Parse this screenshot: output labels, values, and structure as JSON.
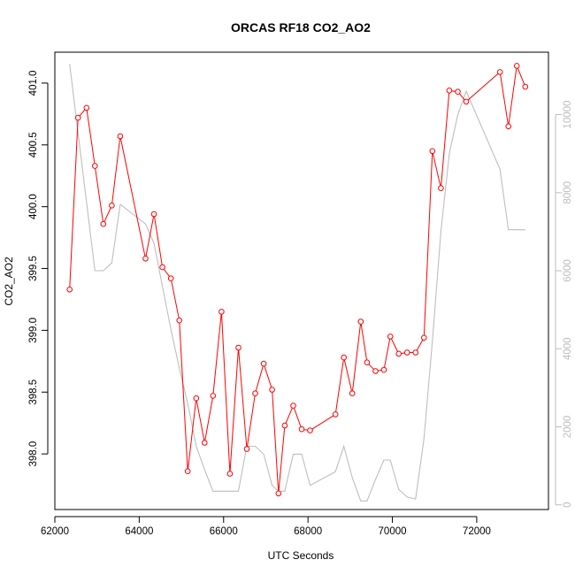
{
  "chart_data": {
    "type": "line",
    "title": "ORCAS RF18 CO2_AO2",
    "xlabel": "UTC Seconds",
    "ylabel": "CO2_AO2",
    "xlim": [
      62000,
      73700
    ],
    "ylim": [
      397.55,
      401.25
    ],
    "y2lim": [
      -120,
      11600
    ],
    "x_ticks": [
      62000,
      64000,
      66000,
      68000,
      70000,
      72000
    ],
    "y_ticks": [
      398.0,
      398.5,
      399.0,
      399.5,
      400.0,
      400.5,
      401.0
    ],
    "y_tick_labels": [
      "398.0",
      "398.5",
      "399.0",
      "399.5",
      "400.0",
      "400.5",
      "401.0"
    ],
    "y2_ticks": [
      0,
      2000,
      4000,
      6000,
      8000,
      10000
    ],
    "grid": false,
    "colors": {
      "primary": "#ff0000",
      "secondary": "#bebebe",
      "axis": "#000000",
      "secondary_axis": "#bdbdbd"
    },
    "series": [
      {
        "axis": "left",
        "style": "line-with-circles",
        "color": "#ff0000",
        "x": [
          62350,
          62550,
          62750,
          62950,
          63150,
          63350,
          63550,
          64150,
          64350,
          64550,
          64750,
          64950,
          65150,
          65350,
          65550,
          65750,
          65950,
          66150,
          66350,
          66550,
          66750,
          66950,
          67150,
          67300,
          67450,
          67650,
          67850,
          68050,
          68650,
          68850,
          69050,
          69250,
          69400,
          69600,
          69800,
          69950,
          70150,
          70350,
          70550,
          70750,
          70950,
          71150,
          71350,
          71550,
          71750,
          72550,
          72750,
          72950,
          73150
        ],
        "y": [
          399.33,
          400.72,
          400.8,
          400.33,
          399.86,
          400.01,
          400.57,
          399.58,
          399.94,
          399.51,
          399.42,
          399.08,
          397.86,
          398.45,
          398.09,
          398.47,
          399.15,
          397.84,
          398.86,
          398.04,
          398.49,
          398.73,
          398.52,
          397.68,
          398.23,
          398.39,
          398.2,
          398.19,
          398.32,
          398.78,
          398.49,
          399.07,
          398.74,
          398.67,
          398.68,
          398.95,
          398.81,
          398.82,
          398.82,
          398.94,
          400.45,
          400.15,
          400.94,
          400.93,
          400.85,
          401.09,
          400.65,
          401.14,
          400.97
        ]
      },
      {
        "axis": "right",
        "style": "line",
        "color": "#bebebe",
        "x": [
          62350,
          62950,
          63150,
          63350,
          63550,
          64150,
          64350,
          64550,
          64750,
          64950,
          65150,
          65350,
          65550,
          65750,
          65950,
          66150,
          66350,
          66550,
          66750,
          66950,
          67150,
          67300,
          67450,
          67650,
          67850,
          68050,
          68650,
          68850,
          69050,
          69250,
          69400,
          69600,
          69800,
          69950,
          70150,
          70350,
          70550,
          70750,
          70950,
          71150,
          71350,
          71550,
          71750,
          72550,
          72750,
          72950,
          73150
        ],
        "y": [
          11300,
          6000,
          6000,
          6200,
          7700,
          7200,
          6700,
          5600,
          4500,
          3500,
          2600,
          1500,
          900,
          350,
          350,
          350,
          350,
          1500,
          1500,
          1300,
          500,
          350,
          350,
          1300,
          1300,
          500,
          850,
          1500,
          700,
          100,
          100,
          650,
          1150,
          1150,
          400,
          200,
          150,
          1700,
          4200,
          7000,
          9000,
          10000,
          10600,
          8600,
          7050,
          7050,
          7050
        ]
      }
    ]
  }
}
